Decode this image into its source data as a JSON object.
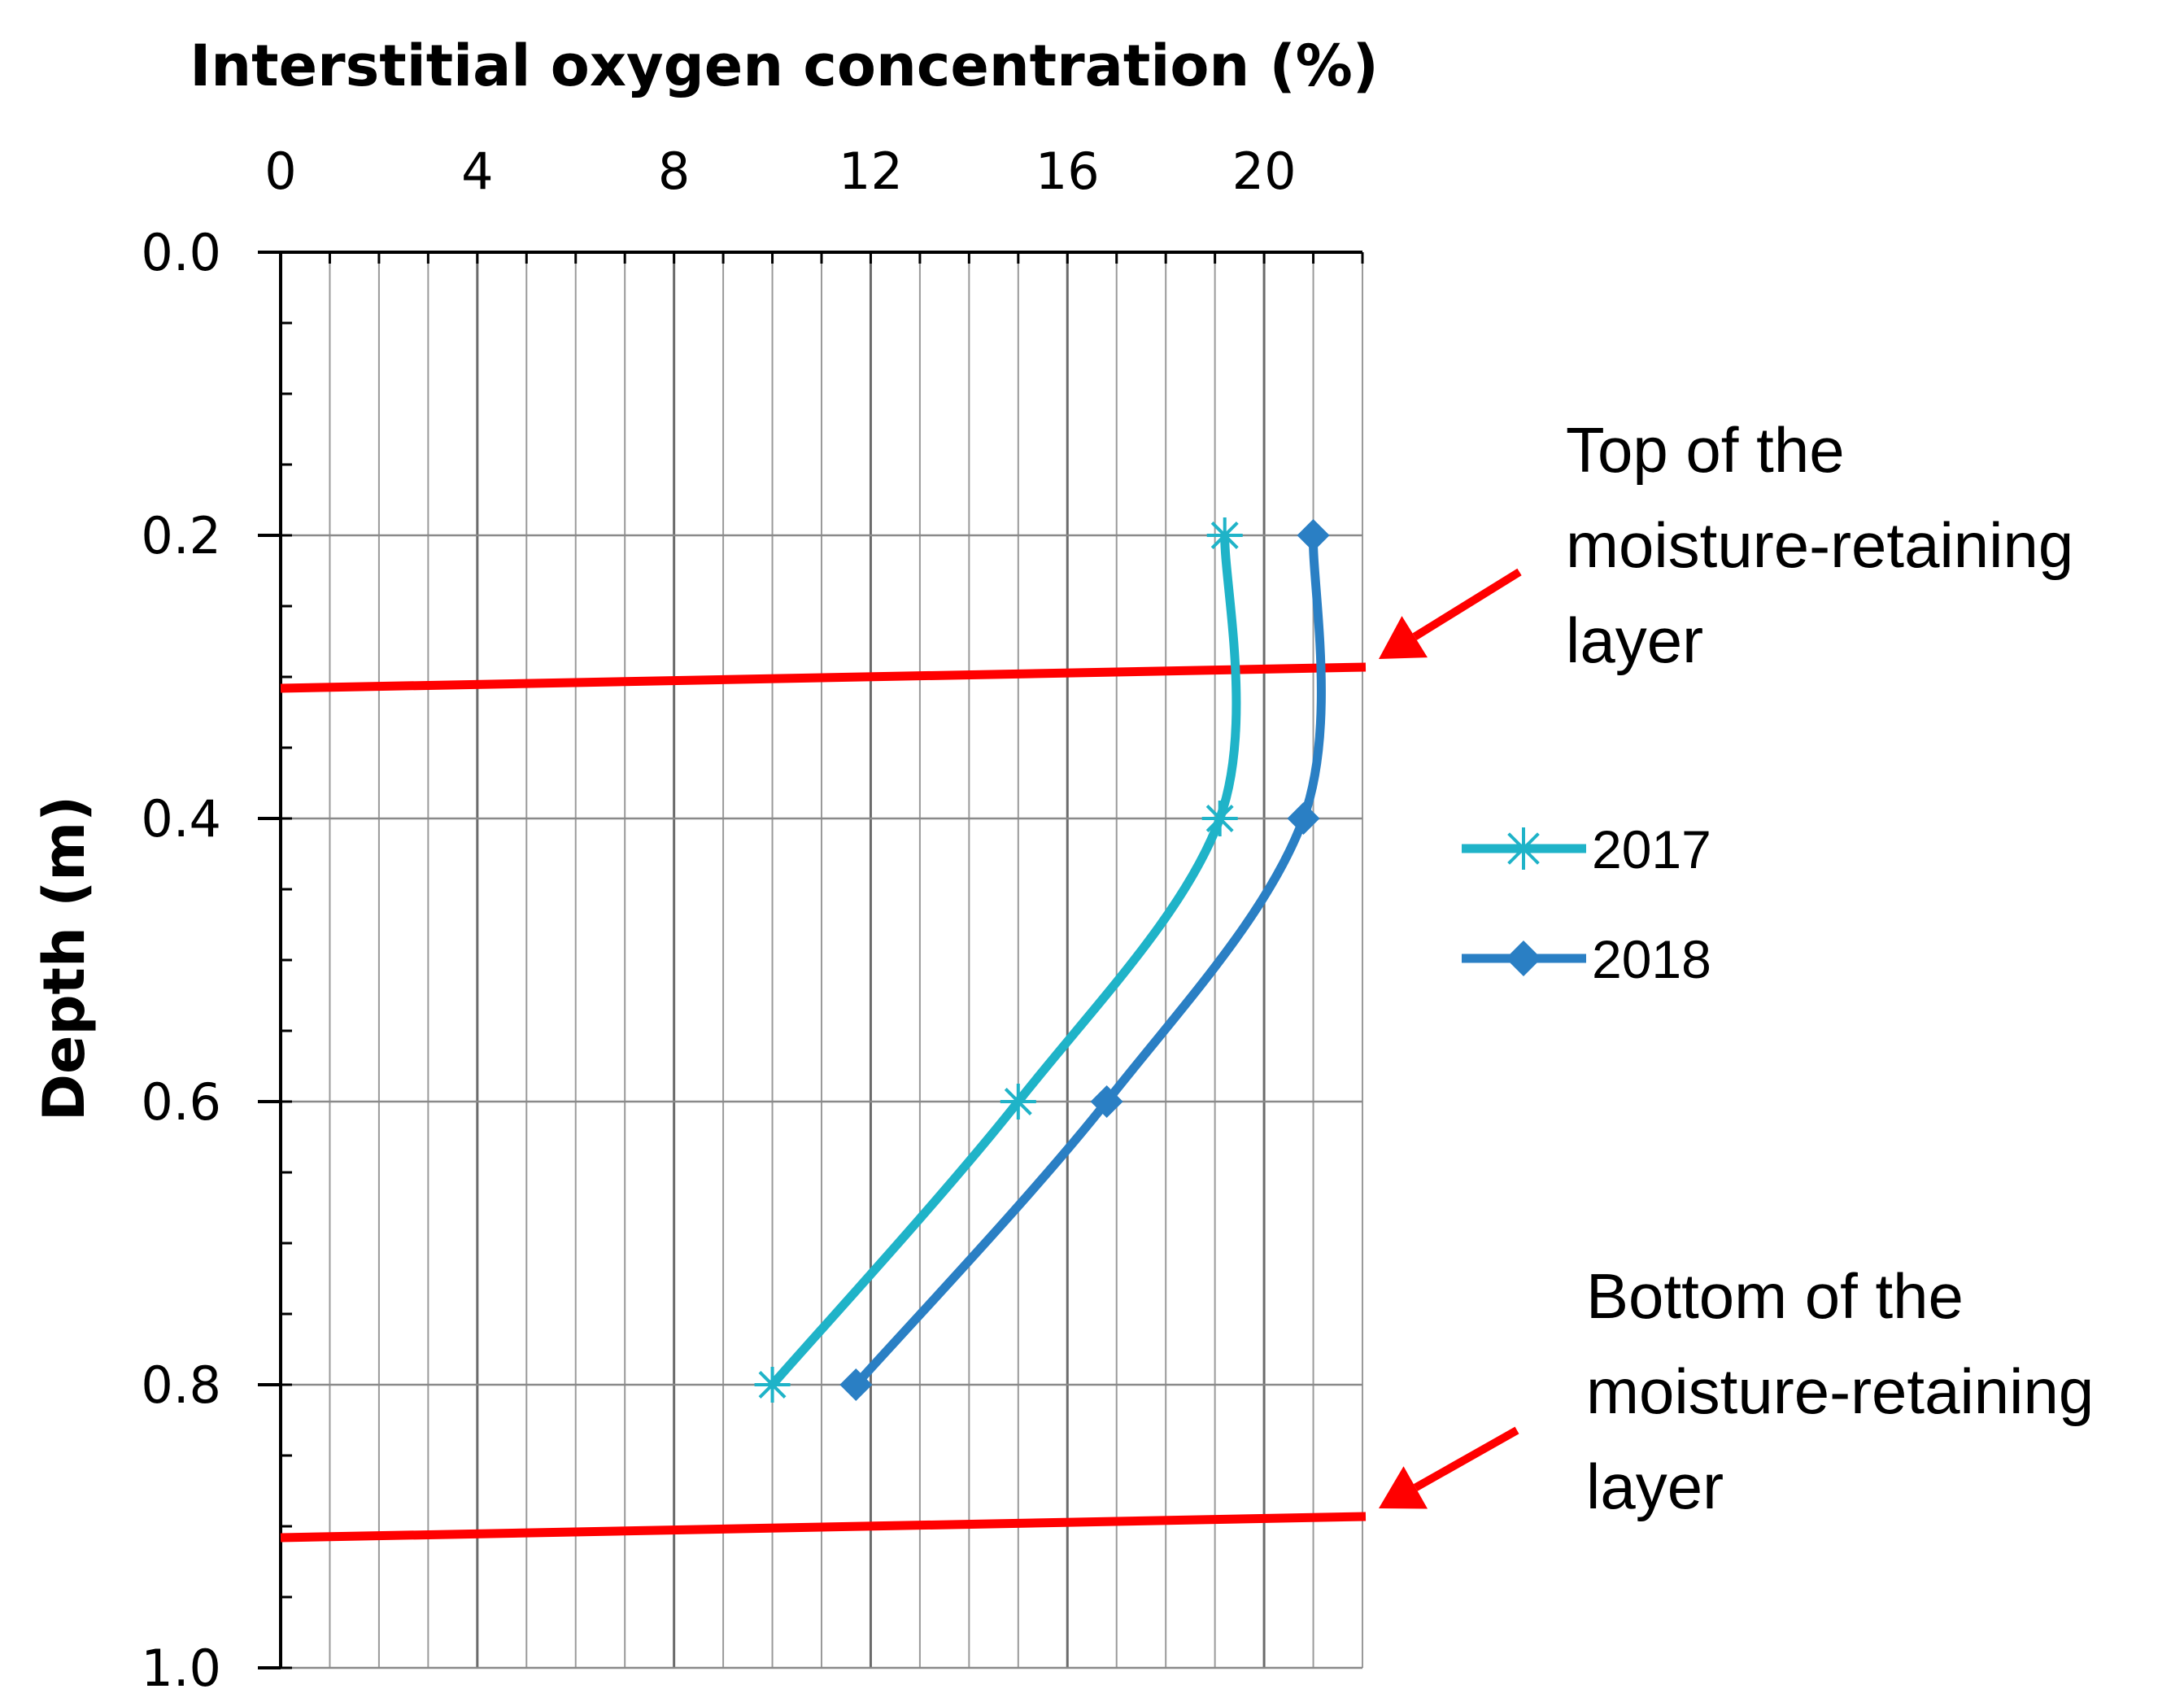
{
  "chart_data": {
    "type": "line",
    "title": "",
    "xlabel": "Interstitial oxygen concentration (%)",
    "ylabel": "Depth (m)",
    "xlim": [
      0,
      22
    ],
    "ylim": [
      0,
      1.0
    ],
    "y_inverted": true,
    "x_axis_position": "top",
    "x_ticks": [
      "0",
      "4",
      "8",
      "12",
      "16",
      "20"
    ],
    "y_ticks": [
      "0.0",
      "0.2",
      "0.4",
      "0.6",
      "0.8",
      "1.0"
    ],
    "grid": true,
    "legend_position": "right",
    "series": [
      {
        "name": "2017",
        "color": "#1fb3c8",
        "marker": "asterisk",
        "x": [
          19.2,
          19.1,
          15.0,
          10.0
        ],
        "y": [
          0.2,
          0.4,
          0.6,
          0.8
        ]
      },
      {
        "name": "2018",
        "color": "#2a7fc4",
        "marker": "diamond",
        "x": [
          21.0,
          20.8,
          16.8,
          11.7
        ],
        "y": [
          0.2,
          0.4,
          0.6,
          0.8
        ]
      }
    ],
    "reference_lines": [
      {
        "y": 0.3,
        "color": "#ff0000"
      },
      {
        "y": 0.9,
        "color": "#ff0000"
      }
    ],
    "annotations": [
      {
        "lines": [
          "Top of the",
          "moisture-retaining",
          "layer"
        ],
        "points_to_y": 0.3
      },
      {
        "lines": [
          "Bottom of the",
          "moisture-retaining",
          "layer"
        ],
        "points_to_y": 0.9
      }
    ]
  }
}
